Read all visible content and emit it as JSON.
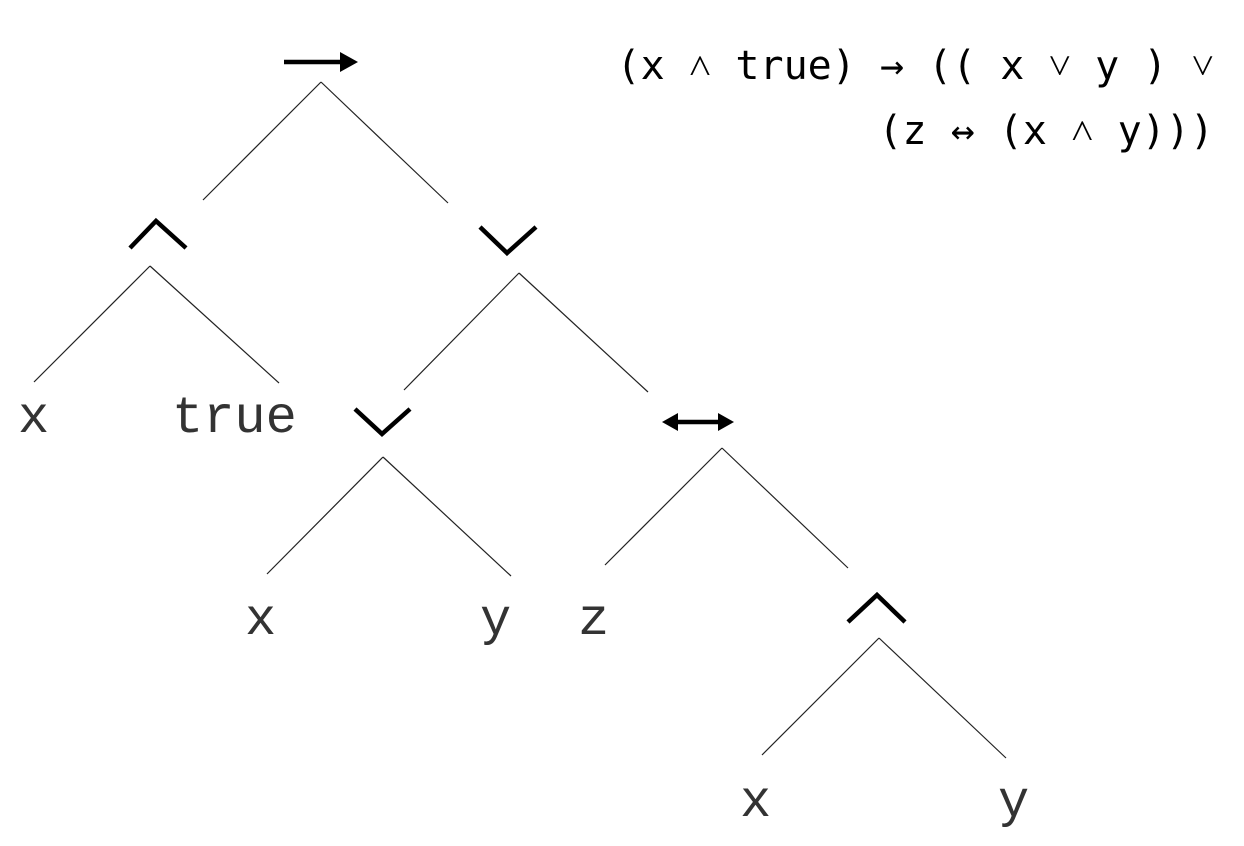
{
  "formula": {
    "line1": "(x ˄ true) → (( x ˅ y ) ˅",
    "line2": "(z ↔ (x ˄ y)))"
  },
  "tree": {
    "root_operator": "implies",
    "left_operator": "and",
    "right_operator": "or",
    "inner_or_operator": "or",
    "biconditional_operator": "iff",
    "inner_and_operator": "and",
    "leaves": {
      "x1": "x",
      "true": "true",
      "x2": "x",
      "y1": "y",
      "z": "z",
      "x3": "x",
      "y2": "y"
    }
  }
}
